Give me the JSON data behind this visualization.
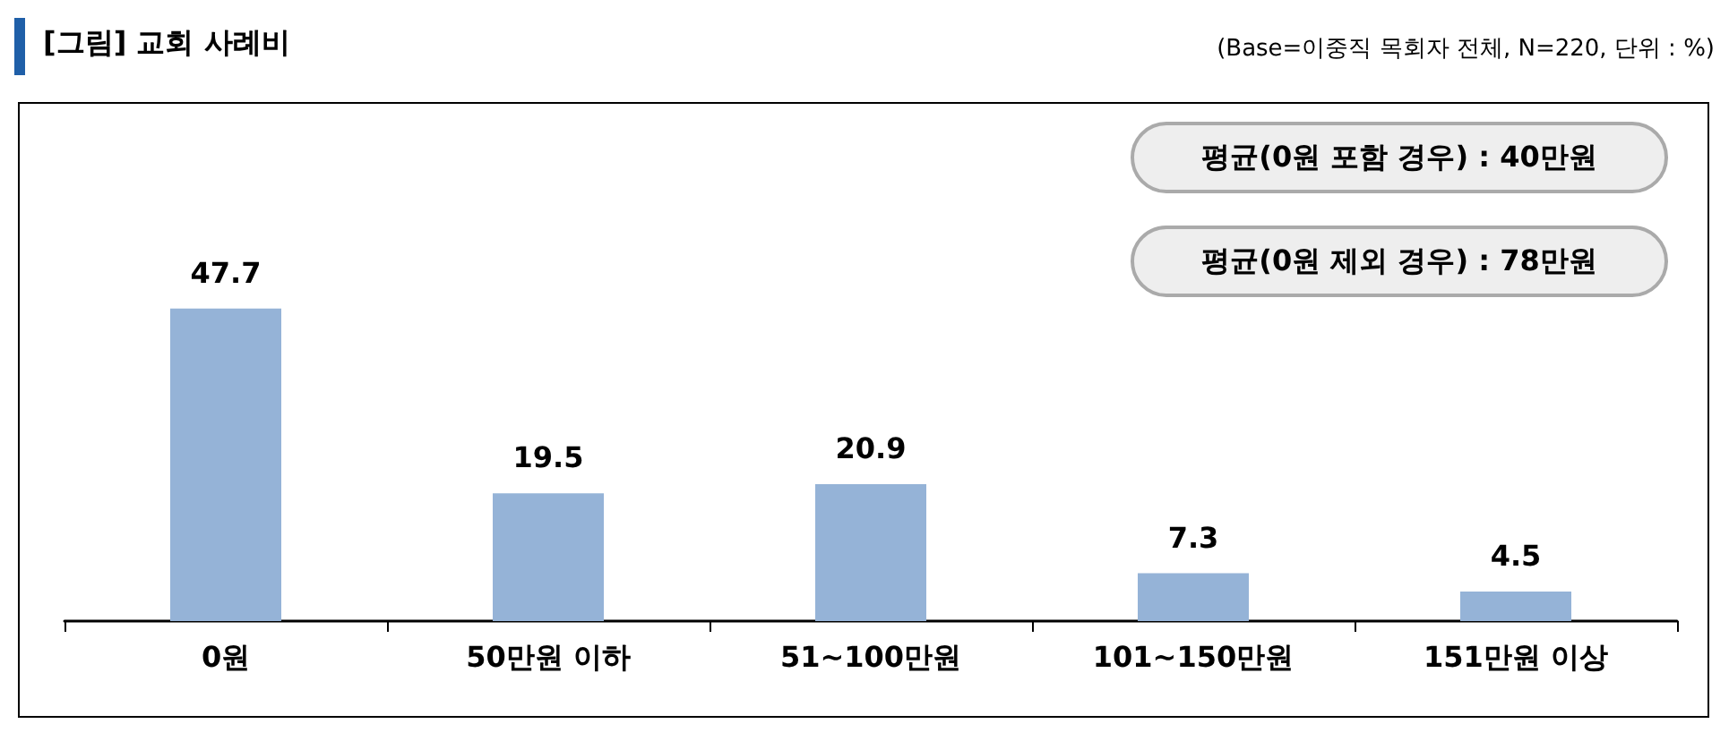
{
  "chart_data": {
    "type": "bar",
    "title": "[그림] 교회 사례비",
    "annotations": [
      "(Base=이중직 목회자 전체, N=220, 단위 : %)",
      "평균(0원 포함 경우) : 40만원",
      "평균(0원 제외 경우) : 78만원"
    ],
    "categories": [
      "0원",
      "50만원 이하",
      "51~100만원",
      "101~150만원",
      "151만원 이상"
    ],
    "values": [
      47.7,
      19.5,
      20.9,
      7.3,
      4.5
    ],
    "color": "#95b3d7",
    "data_labels": true
  }
}
